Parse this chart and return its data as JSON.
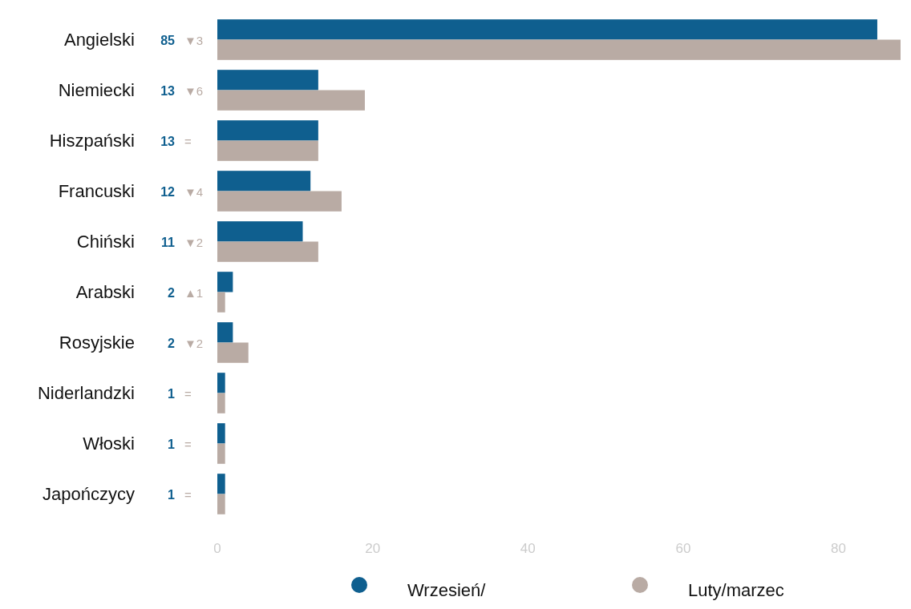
{
  "chart_data": {
    "type": "bar",
    "orientation": "horizontal",
    "categories": [
      "Angielski",
      "Niemiecki",
      "Hiszpański",
      "Francuski",
      "Chiński",
      "Arabski",
      "Rosyjskie",
      "Niderlandzki",
      "Włoski",
      "Japończycy"
    ],
    "series": [
      {
        "name": "Wrzesień/",
        "color": "#0f5f8f",
        "values": [
          85,
          13,
          13,
          12,
          11,
          2,
          2,
          1,
          1,
          1
        ],
        "value_labels": [
          "85",
          "13",
          "13",
          "12",
          "11",
          "2",
          "2",
          "1",
          "1",
          "1"
        ]
      },
      {
        "name": "Luty/marzec",
        "color": "#b9aba4",
        "values": [
          88,
          19,
          13,
          16,
          13,
          1,
          4,
          1,
          1,
          1
        ]
      }
    ],
    "annotations": [
      "▼3",
      "▼6",
      "=",
      "▼4",
      "▼2",
      "▲1",
      "▼2",
      "=",
      "=",
      "="
    ],
    "xlim": [
      0,
      88
    ],
    "xticks": [
      0,
      20,
      40,
      60,
      80
    ],
    "grid": false,
    "legend": "bottom"
  }
}
